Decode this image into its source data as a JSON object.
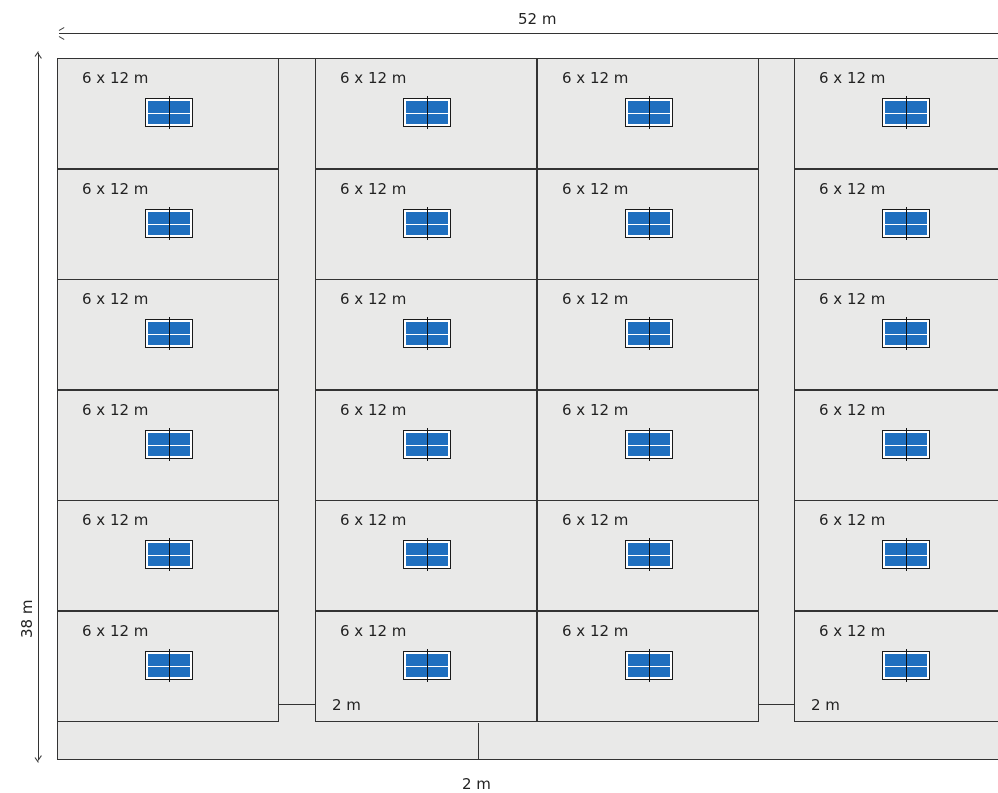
{
  "dimensions": {
    "overall_width": "52 m",
    "overall_height": "38 m",
    "aisle_width": "2 m",
    "bottom_aisle_width": "2 m"
  },
  "court_label": "6 x 12 m",
  "layout": {
    "columns": 4,
    "rows": 6,
    "court_count": 24
  },
  "colors": {
    "table_blue": "#1f6fbf",
    "floor": "#e9e9e8",
    "line": "#333333"
  },
  "icons": {
    "court_table": "ping-pong-table-icon"
  }
}
